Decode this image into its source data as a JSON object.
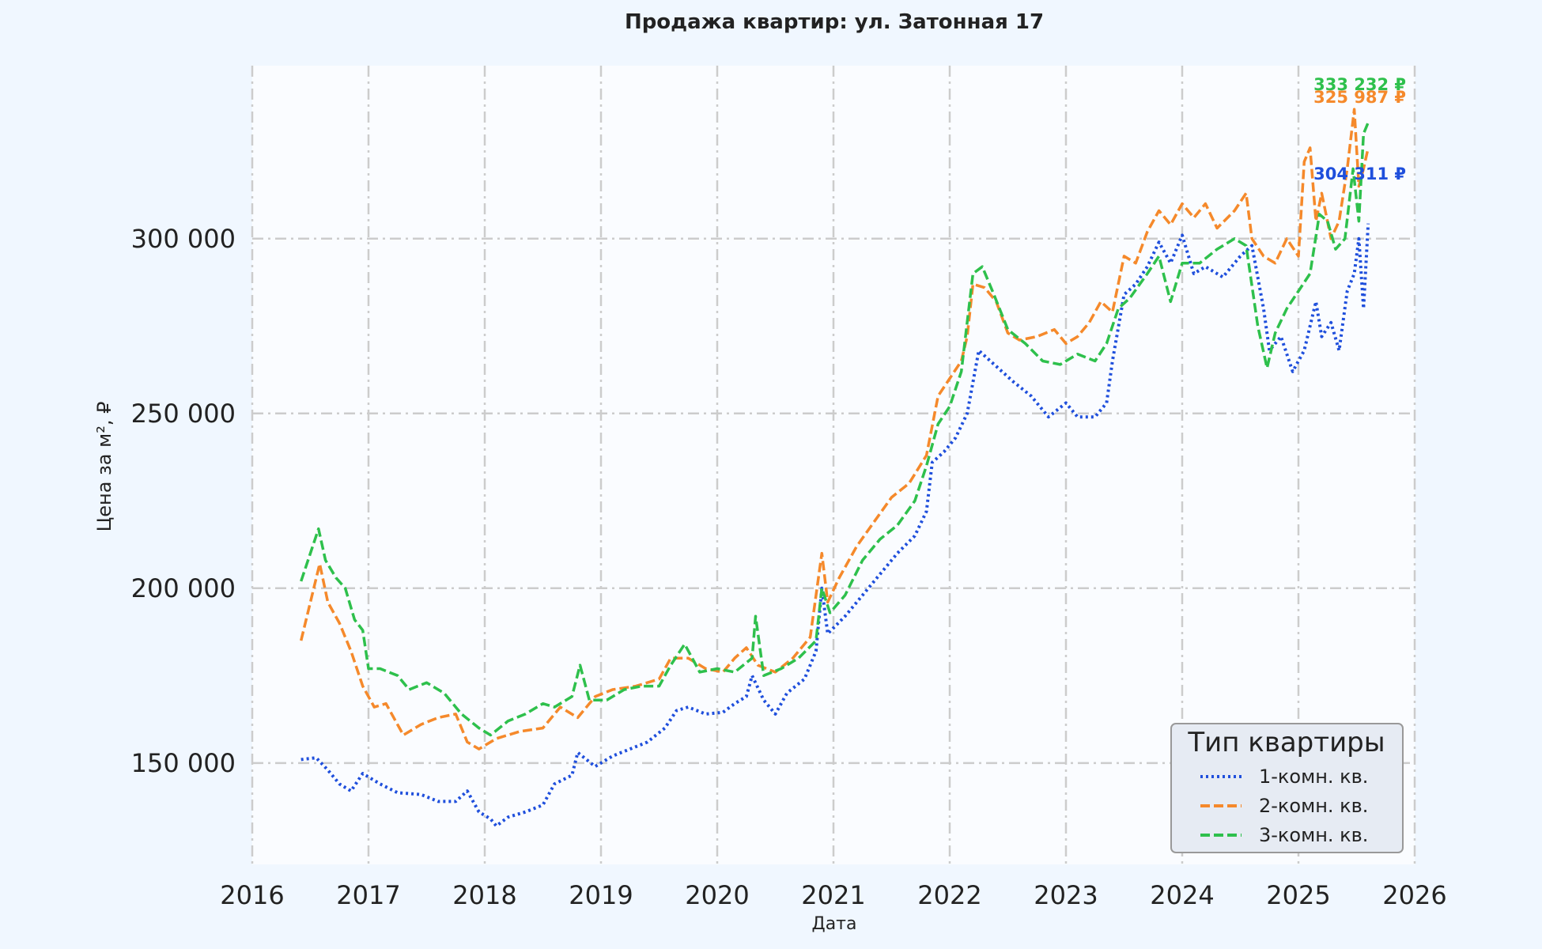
{
  "chart_data": {
    "type": "line",
    "title": "Продажа квартир: ул. Затонная 17",
    "xlabel": "Дата",
    "ylabel": "Цена за м², ₽",
    "xlim": [
      2016,
      2026
    ],
    "ylim": [
      121000,
      349500
    ],
    "x_ticks": [
      "2016",
      "2017",
      "2018",
      "2019",
      "2020",
      "2021",
      "2022",
      "2023",
      "2024",
      "2025",
      "2026"
    ],
    "y_ticks": [
      {
        "value": 150000,
        "label": "150 000"
      },
      {
        "value": 200000,
        "label": "200 000"
      },
      {
        "value": 250000,
        "label": "250 000"
      },
      {
        "value": 300000,
        "label": "300 000"
      }
    ],
    "grid": true,
    "legend": {
      "title": "Тип квартиры",
      "position": "bottom-right"
    },
    "series": [
      {
        "name": "1-комн. кв.",
        "color": "#1f4fdc",
        "dash": "dotted",
        "end_label": "304 311 ₽",
        "points": [
          [
            2016.42,
            151000
          ],
          [
            2016.55,
            151500
          ],
          [
            2016.65,
            148000
          ],
          [
            2016.75,
            144000
          ],
          [
            2016.85,
            142000
          ],
          [
            2016.95,
            147000
          ],
          [
            2017.1,
            144000
          ],
          [
            2017.25,
            141500
          ],
          [
            2017.45,
            141000
          ],
          [
            2017.6,
            139000
          ],
          [
            2017.75,
            139000
          ],
          [
            2017.85,
            142000
          ],
          [
            2017.95,
            136000
          ],
          [
            2018.05,
            134000
          ],
          [
            2018.1,
            132000
          ],
          [
            2018.2,
            134500
          ],
          [
            2018.35,
            136000
          ],
          [
            2018.5,
            138000
          ],
          [
            2018.6,
            144000
          ],
          [
            2018.75,
            146500
          ],
          [
            2018.8,
            153000
          ],
          [
            2018.95,
            149000
          ],
          [
            2019.1,
            152000
          ],
          [
            2019.25,
            154000
          ],
          [
            2019.4,
            156000
          ],
          [
            2019.55,
            160000
          ],
          [
            2019.65,
            165000
          ],
          [
            2019.75,
            166000
          ],
          [
            2019.9,
            164000
          ],
          [
            2020.05,
            164500
          ],
          [
            2020.15,
            167000
          ],
          [
            2020.25,
            169000
          ],
          [
            2020.3,
            175000
          ],
          [
            2020.4,
            168000
          ],
          [
            2020.5,
            164000
          ],
          [
            2020.6,
            170000
          ],
          [
            2020.75,
            174000
          ],
          [
            2020.85,
            182000
          ],
          [
            2020.9,
            200000
          ],
          [
            2020.95,
            187000
          ],
          [
            2021.1,
            192000
          ],
          [
            2021.25,
            198000
          ],
          [
            2021.4,
            204000
          ],
          [
            2021.55,
            210000
          ],
          [
            2021.7,
            215000
          ],
          [
            2021.8,
            222000
          ],
          [
            2021.85,
            236000
          ],
          [
            2021.95,
            239000
          ],
          [
            2022.05,
            243000
          ],
          [
            2022.15,
            250000
          ],
          [
            2022.25,
            268000
          ],
          [
            2022.35,
            265000
          ],
          [
            2022.45,
            262000
          ],
          [
            2022.55,
            259000
          ],
          [
            2022.7,
            255000
          ],
          [
            2022.85,
            249000
          ],
          [
            2023.0,
            253000
          ],
          [
            2023.1,
            249000
          ],
          [
            2023.25,
            249000
          ],
          [
            2023.35,
            253000
          ],
          [
            2023.4,
            265000
          ],
          [
            2023.5,
            284000
          ],
          [
            2023.6,
            287000
          ],
          [
            2023.7,
            292000
          ],
          [
            2023.8,
            299000
          ],
          [
            2023.9,
            293000
          ],
          [
            2024.0,
            301000
          ],
          [
            2024.1,
            290000
          ],
          [
            2024.2,
            292000
          ],
          [
            2024.35,
            289000
          ],
          [
            2024.5,
            295000
          ],
          [
            2024.6,
            298000
          ],
          [
            2024.7,
            280000
          ],
          [
            2024.75,
            268000
          ],
          [
            2024.85,
            272000
          ],
          [
            2024.95,
            262000
          ],
          [
            2025.05,
            268000
          ],
          [
            2025.15,
            282000
          ],
          [
            2025.2,
            272000
          ],
          [
            2025.28,
            276000
          ],
          [
            2025.35,
            268000
          ],
          [
            2025.42,
            285000
          ],
          [
            2025.48,
            290000
          ],
          [
            2025.52,
            300000
          ],
          [
            2025.56,
            280000
          ],
          [
            2025.6,
            304311
          ]
        ]
      },
      {
        "name": "2-комн. кв.",
        "color": "#f5892b",
        "dash": "dashed",
        "end_label": "325 987 ₽",
        "points": [
          [
            2016.42,
            185000
          ],
          [
            2016.5,
            196000
          ],
          [
            2016.58,
            207000
          ],
          [
            2016.65,
            196000
          ],
          [
            2016.75,
            190000
          ],
          [
            2016.85,
            182000
          ],
          [
            2016.95,
            172000
          ],
          [
            2017.05,
            166000
          ],
          [
            2017.15,
            167000
          ],
          [
            2017.3,
            158000
          ],
          [
            2017.45,
            161000
          ],
          [
            2017.6,
            163000
          ],
          [
            2017.75,
            164000
          ],
          [
            2017.85,
            156000
          ],
          [
            2017.95,
            154000
          ],
          [
            2018.1,
            157000
          ],
          [
            2018.3,
            159000
          ],
          [
            2018.5,
            160000
          ],
          [
            2018.65,
            166000
          ],
          [
            2018.8,
            163000
          ],
          [
            2018.95,
            169000
          ],
          [
            2019.1,
            171000
          ],
          [
            2019.3,
            172000
          ],
          [
            2019.5,
            174000
          ],
          [
            2019.6,
            180000
          ],
          [
            2019.75,
            180000
          ],
          [
            2019.9,
            177000
          ],
          [
            2020.05,
            176000
          ],
          [
            2020.15,
            180000
          ],
          [
            2020.25,
            183000
          ],
          [
            2020.35,
            178000
          ],
          [
            2020.5,
            176000
          ],
          [
            2020.65,
            180000
          ],
          [
            2020.8,
            186000
          ],
          [
            2020.9,
            210000
          ],
          [
            2020.95,
            196000
          ],
          [
            2021.05,
            203000
          ],
          [
            2021.2,
            212000
          ],
          [
            2021.35,
            219000
          ],
          [
            2021.5,
            226000
          ],
          [
            2021.65,
            230000
          ],
          [
            2021.8,
            238000
          ],
          [
            2021.9,
            255000
          ],
          [
            2022.0,
            260000
          ],
          [
            2022.1,
            265000
          ],
          [
            2022.15,
            272000
          ],
          [
            2022.2,
            287000
          ],
          [
            2022.3,
            286000
          ],
          [
            2022.4,
            282000
          ],
          [
            2022.5,
            273000
          ],
          [
            2022.6,
            271000
          ],
          [
            2022.75,
            272000
          ],
          [
            2022.9,
            274000
          ],
          [
            2023.0,
            270000
          ],
          [
            2023.1,
            272000
          ],
          [
            2023.2,
            276000
          ],
          [
            2023.3,
            282000
          ],
          [
            2023.4,
            279000
          ],
          [
            2023.5,
            295000
          ],
          [
            2023.6,
            293000
          ],
          [
            2023.7,
            302000
          ],
          [
            2023.8,
            308000
          ],
          [
            2023.9,
            304000
          ],
          [
            2024.0,
            310000
          ],
          [
            2024.1,
            306000
          ],
          [
            2024.2,
            310000
          ],
          [
            2024.3,
            303000
          ],
          [
            2024.45,
            308000
          ],
          [
            2024.55,
            313000
          ],
          [
            2024.6,
            300000
          ],
          [
            2024.7,
            295000
          ],
          [
            2024.8,
            293000
          ],
          [
            2024.9,
            300000
          ],
          [
            2025.0,
            295000
          ],
          [
            2025.05,
            322000
          ],
          [
            2025.1,
            326000
          ],
          [
            2025.15,
            305000
          ],
          [
            2025.2,
            313000
          ],
          [
            2025.28,
            300000
          ],
          [
            2025.35,
            305000
          ],
          [
            2025.42,
            320000
          ],
          [
            2025.48,
            337000
          ],
          [
            2025.52,
            315000
          ],
          [
            2025.56,
            320000
          ],
          [
            2025.6,
            325987
          ]
        ]
      },
      {
        "name": "3-комн. кв.",
        "color": "#2ec04c",
        "dash": "dashed",
        "end_label": "333 232 ₽",
        "points": [
          [
            2016.42,
            202000
          ],
          [
            2016.5,
            210000
          ],
          [
            2016.57,
            217000
          ],
          [
            2016.63,
            208000
          ],
          [
            2016.72,
            203000
          ],
          [
            2016.8,
            200000
          ],
          [
            2016.88,
            191000
          ],
          [
            2016.95,
            188000
          ],
          [
            2017.0,
            177000
          ],
          [
            2017.1,
            177000
          ],
          [
            2017.25,
            175000
          ],
          [
            2017.35,
            171000
          ],
          [
            2017.5,
            173000
          ],
          [
            2017.65,
            170000
          ],
          [
            2017.8,
            164000
          ],
          [
            2017.95,
            160000
          ],
          [
            2018.05,
            158000
          ],
          [
            2018.2,
            162000
          ],
          [
            2018.35,
            164000
          ],
          [
            2018.5,
            167000
          ],
          [
            2018.6,
            166000
          ],
          [
            2018.75,
            169000
          ],
          [
            2018.82,
            178000
          ],
          [
            2018.9,
            168000
          ],
          [
            2019.05,
            168000
          ],
          [
            2019.2,
            171000
          ],
          [
            2019.35,
            172000
          ],
          [
            2019.5,
            172000
          ],
          [
            2019.6,
            178000
          ],
          [
            2019.72,
            184000
          ],
          [
            2019.85,
            176000
          ],
          [
            2020.0,
            177000
          ],
          [
            2020.15,
            176000
          ],
          [
            2020.3,
            180000
          ],
          [
            2020.33,
            192000
          ],
          [
            2020.4,
            175000
          ],
          [
            2020.55,
            177000
          ],
          [
            2020.7,
            180000
          ],
          [
            2020.85,
            185000
          ],
          [
            2020.9,
            200000
          ],
          [
            2020.97,
            193000
          ],
          [
            2021.1,
            198000
          ],
          [
            2021.25,
            208000
          ],
          [
            2021.4,
            214000
          ],
          [
            2021.55,
            218000
          ],
          [
            2021.7,
            225000
          ],
          [
            2021.8,
            235000
          ],
          [
            2021.9,
            247000
          ],
          [
            2022.0,
            252000
          ],
          [
            2022.1,
            262000
          ],
          [
            2022.2,
            290000
          ],
          [
            2022.28,
            292000
          ],
          [
            2022.38,
            284000
          ],
          [
            2022.5,
            274000
          ],
          [
            2022.65,
            270000
          ],
          [
            2022.8,
            265000
          ],
          [
            2022.95,
            264000
          ],
          [
            2023.1,
            267000
          ],
          [
            2023.25,
            265000
          ],
          [
            2023.35,
            270000
          ],
          [
            2023.45,
            280000
          ],
          [
            2023.55,
            283000
          ],
          [
            2023.7,
            290000
          ],
          [
            2023.8,
            295000
          ],
          [
            2023.9,
            282000
          ],
          [
            2024.0,
            293000
          ],
          [
            2024.15,
            293000
          ],
          [
            2024.3,
            297000
          ],
          [
            2024.45,
            300000
          ],
          [
            2024.55,
            298000
          ],
          [
            2024.65,
            275000
          ],
          [
            2024.73,
            263000
          ],
          [
            2024.8,
            273000
          ],
          [
            2024.9,
            280000
          ],
          [
            2025.0,
            285000
          ],
          [
            2025.1,
            290000
          ],
          [
            2025.18,
            307000
          ],
          [
            2025.25,
            305000
          ],
          [
            2025.32,
            297000
          ],
          [
            2025.4,
            300000
          ],
          [
            2025.47,
            320000
          ],
          [
            2025.52,
            305000
          ],
          [
            2025.56,
            330000
          ],
          [
            2025.6,
            333232
          ]
        ]
      }
    ]
  }
}
